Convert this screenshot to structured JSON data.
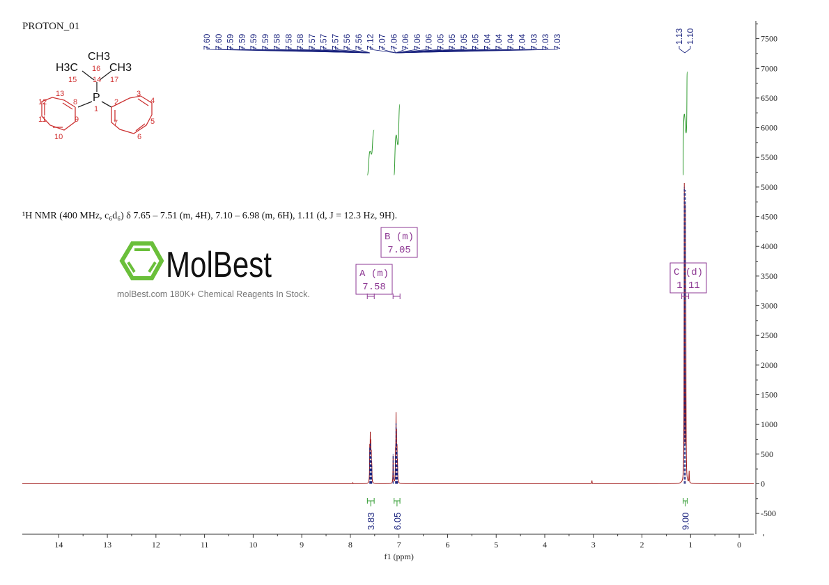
{
  "title": "PROTON_01",
  "description": "¹H NMR (400 MHz, c₆d₆) δ 7.65 – 7.51 (m, 4H), 7.10 – 6.98 (m, 6H), 1.11 (d, J = 12.3 Hz, 9H).",
  "structure_labels": {
    "atoms": [
      "H3C",
      "CH3",
      "CH3",
      "P"
    ],
    "numbers": [
      "1",
      "2",
      "3",
      "4",
      "5",
      "6",
      "7",
      "8",
      "9",
      "10",
      "11",
      "12",
      "13",
      "14",
      "15",
      "16",
      "17"
    ]
  },
  "watermark": {
    "brand": "MolBest",
    "tagline": "molBest.com 180K+ Chemical Reagents In Stock.",
    "color": "#6abf3a"
  },
  "chart_data": {
    "type": "line",
    "xlabel": "f1 (ppm)",
    "xlim": [
      14.75,
      -0.3
    ],
    "ylim": [
      -850,
      7800
    ],
    "x_ticks": [
      "14",
      "13",
      "12",
      "11",
      "10",
      "9",
      "8",
      "7",
      "6",
      "5",
      "4",
      "3",
      "2",
      "1",
      "0"
    ],
    "y_ticks": [
      "7500",
      "7000",
      "6500",
      "6000",
      "5500",
      "5000",
      "4500",
      "4000",
      "3500",
      "3000",
      "2500",
      "2000",
      "1500",
      "1000",
      "500",
      "0",
      "-500"
    ],
    "y_axis_position": "right",
    "spectrum_color": "#a01818",
    "peak_marker_color": "#1a237e",
    "integral_color": "#2e9a2e",
    "peaks": [
      {
        "ppm": 7.6,
        "height": 620
      },
      {
        "ppm": 7.59,
        "height": 700
      },
      {
        "ppm": 7.58,
        "height": 560
      },
      {
        "ppm": 7.57,
        "height": 450
      },
      {
        "ppm": 7.56,
        "height": 300
      },
      {
        "ppm": 7.12,
        "height": 500
      },
      {
        "ppm": 7.07,
        "height": 480
      },
      {
        "ppm": 7.06,
        "height": 1020
      },
      {
        "ppm": 7.05,
        "height": 700
      },
      {
        "ppm": 7.04,
        "height": 550
      },
      {
        "ppm": 7.03,
        "height": 300
      },
      {
        "ppm": 1.13,
        "height": 5000
      },
      {
        "ppm": 1.1,
        "height": 4950
      },
      {
        "ppm": 1.03,
        "height": 200
      },
      {
        "ppm": 3.03,
        "height": 60
      },
      {
        "ppm": 7.95,
        "height": 20
      }
    ],
    "peak_labels_aromatic": [
      "7.60",
      "7.60",
      "7.59",
      "7.59",
      "7.59",
      "7.59",
      "7.58",
      "7.58",
      "7.58",
      "7.57",
      "7.57",
      "7.57",
      "7.56",
      "7.56",
      "7.12",
      "7.07",
      "7.06",
      "7.06",
      "7.06",
      "7.06",
      "7.05",
      "7.05",
      "7.05",
      "7.05",
      "7.04",
      "7.04",
      "7.04",
      "7.04",
      "7.03",
      "7.03",
      "7.03"
    ],
    "peak_labels_aliphatic": [
      "1.13",
      "1.10"
    ],
    "integrals": [
      {
        "from": 7.65,
        "to": 7.51,
        "value": "3.83"
      },
      {
        "from": 7.1,
        "to": 6.98,
        "value": "6.05"
      },
      {
        "from": 1.15,
        "to": 1.07,
        "value": "9.00"
      }
    ],
    "multiplets": [
      {
        "label": "A (m)",
        "shift": "7.58",
        "ppm": 7.58
      },
      {
        "label": "B (m)",
        "shift": "7.05",
        "ppm": 7.05
      },
      {
        "label": "C (d)",
        "shift": "1.11",
        "ppm": 1.11
      }
    ]
  }
}
